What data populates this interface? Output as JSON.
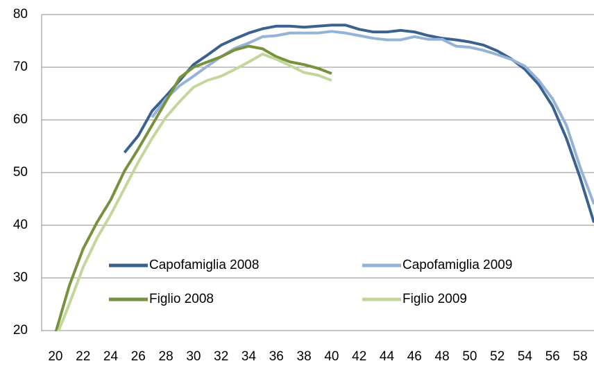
{
  "chart_data": {
    "type": "line",
    "x": [
      20,
      21,
      22,
      23,
      24,
      25,
      26,
      27,
      28,
      29,
      30,
      31,
      32,
      33,
      34,
      35,
      36,
      37,
      38,
      39,
      40,
      41,
      42,
      43,
      44,
      45,
      46,
      47,
      48,
      49,
      50,
      51,
      52,
      53,
      54,
      55,
      56,
      57,
      58,
      59
    ],
    "series": [
      {
        "name": "Capofamiglia 2008",
        "color": "#3a6190",
        "values": [
          null,
          null,
          null,
          null,
          null,
          53.8,
          57,
          61.7,
          64.5,
          67.5,
          70.5,
          72.3,
          74.2,
          75.4,
          76.5,
          77.3,
          77.8,
          77.8,
          77.6,
          77.8,
          78,
          78,
          77.2,
          76.7,
          76.7,
          77,
          76.7,
          76,
          75.5,
          75.2,
          74.8,
          74.2,
          73.1,
          71.6,
          69.6,
          66.7,
          62.6,
          56.5,
          49,
          40.5
        ]
      },
      {
        "name": "Capofamiglia 2009",
        "color": "#95b3d7",
        "values": [
          null,
          null,
          null,
          null,
          null,
          null,
          null,
          60.5,
          64,
          66.5,
          68.3,
          70.2,
          72,
          73.6,
          74.6,
          75.8,
          76,
          76.5,
          76.5,
          76.5,
          76.8,
          76.5,
          76,
          75.5,
          75.2,
          75.2,
          75.8,
          75.3,
          75.3,
          74,
          73.8,
          73.2,
          72.4,
          71.5,
          70.2,
          67.5,
          64,
          59,
          51,
          44
        ]
      },
      {
        "name": "Figlio 2008",
        "color": "#76923c",
        "values": [
          19.5,
          28.5,
          35.5,
          40.5,
          44.8,
          50.3,
          54.5,
          59,
          63.5,
          68,
          70,
          71,
          72,
          73.3,
          74,
          73.5,
          72,
          71,
          70.5,
          69.8,
          68.8,
          null,
          null,
          null,
          null,
          null,
          null,
          null,
          null,
          null,
          null,
          null,
          null,
          null,
          null,
          null,
          null,
          null,
          null,
          null
        ]
      },
      {
        "name": "Figlio 2009",
        "color": "#c3d69b",
        "values": [
          18.5,
          25,
          32,
          37.5,
          42,
          47,
          52,
          56.5,
          60.5,
          63.5,
          66.2,
          67.5,
          68.3,
          69.6,
          71,
          72.5,
          71.5,
          70.3,
          69,
          68.5,
          67.5,
          null,
          null,
          null,
          null,
          null,
          null,
          null,
          null,
          null,
          null,
          null,
          null,
          null,
          null,
          null,
          null,
          null,
          null,
          null
        ]
      }
    ],
    "xlim": [
      19,
      59
    ],
    "xticks": [
      20,
      22,
      24,
      26,
      28,
      30,
      32,
      34,
      36,
      38,
      40,
      42,
      44,
      46,
      48,
      50,
      52,
      54,
      56,
      58
    ],
    "ylim": [
      20,
      80
    ],
    "yticks": [
      20,
      30,
      40,
      50,
      60,
      70,
      80
    ],
    "grid": true
  }
}
